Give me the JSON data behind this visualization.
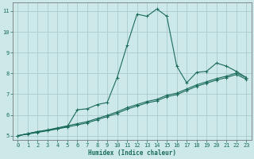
{
  "xlabel": "Humidex (Indice chaleur)",
  "bg_color": "#cce8e8",
  "grid_color": "#aacccc",
  "line_color": "#1a6b5a",
  "xlim": [
    -0.5,
    23.5
  ],
  "ylim": [
    4.8,
    11.4
  ],
  "xticks": [
    0,
    1,
    2,
    3,
    4,
    5,
    6,
    7,
    8,
    9,
    10,
    11,
    12,
    13,
    14,
    15,
    16,
    17,
    18,
    19,
    20,
    21,
    22,
    23
  ],
  "yticks": [
    5,
    6,
    7,
    8,
    9,
    10,
    11
  ],
  "series1_x": [
    0,
    1,
    2,
    3,
    4,
    5,
    6,
    7,
    8,
    9,
    10,
    11,
    12,
    13,
    14,
    15,
    16,
    17,
    18,
    19,
    20,
    21,
    22,
    23
  ],
  "series1_y": [
    5.0,
    5.1,
    5.2,
    5.25,
    5.35,
    5.45,
    6.25,
    6.3,
    6.5,
    6.6,
    7.8,
    9.35,
    10.85,
    10.75,
    11.1,
    10.75,
    8.35,
    7.55,
    8.05,
    8.1,
    8.5,
    8.35,
    8.1,
    7.8
  ],
  "series2_x": [
    0,
    1,
    2,
    3,
    4,
    5,
    6,
    7,
    8,
    9,
    10,
    11,
    12,
    13,
    14,
    15,
    16,
    17,
    18,
    19,
    20,
    21,
    22,
    23
  ],
  "series2_y": [
    5.0,
    5.1,
    5.2,
    5.28,
    5.38,
    5.48,
    5.58,
    5.68,
    5.83,
    5.98,
    6.15,
    6.35,
    6.5,
    6.65,
    6.75,
    6.95,
    7.05,
    7.25,
    7.45,
    7.6,
    7.75,
    7.87,
    8.02,
    7.8
  ],
  "series3_x": [
    0,
    1,
    2,
    3,
    4,
    5,
    6,
    7,
    8,
    9,
    10,
    11,
    12,
    13,
    14,
    15,
    16,
    17,
    18,
    19,
    20,
    21,
    22,
    23
  ],
  "series3_y": [
    5.0,
    5.08,
    5.16,
    5.24,
    5.33,
    5.42,
    5.52,
    5.62,
    5.77,
    5.92,
    6.08,
    6.28,
    6.43,
    6.58,
    6.68,
    6.88,
    6.98,
    7.18,
    7.38,
    7.53,
    7.68,
    7.8,
    7.95,
    7.72
  ]
}
